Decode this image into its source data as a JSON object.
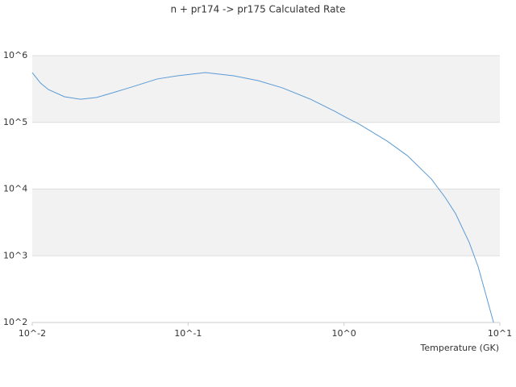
{
  "chart_data": {
    "type": "line",
    "title": "n + pr174 -> pr175 Calculated Rate",
    "x_label": "Temperature (GK)",
    "x": [
      0.01,
      0.0113,
      0.0127,
      0.0161,
      0.0204,
      0.0259,
      0.0329,
      0.0418,
      0.0634,
      0.0854,
      0.129,
      0.196,
      0.281,
      0.402,
      0.61,
      0.871,
      1.04,
      1.25,
      1.89,
      2.55,
      3.64,
      4.46,
      5.2,
      6.37,
      7.26,
      9.11
    ],
    "series": [
      {
        "color": "#5b9bd5",
        "values": [
          557000,
          388000,
          310000,
          242000,
          222000,
          236000,
          278000,
          329000,
          447000,
          499000,
          557000,
          499000,
          422000,
          329000,
          222000,
          147000,
          117000,
          94000,
          52400,
          31700,
          14100,
          7470,
          4280,
          1570,
          682,
          100
        ]
      }
    ],
    "xlim": [
      0.01,
      10
    ],
    "ylim": [
      100,
      1000000
    ],
    "xticks": [
      {
        "value": 0.01,
        "label": "10^-2"
      },
      {
        "value": 0.1,
        "label": "10^-1"
      },
      {
        "value": 1,
        "label": "10^0"
      },
      {
        "value": 10,
        "label": "10^1"
      }
    ],
    "yticks": [
      {
        "value": 100,
        "label": "10^2"
      },
      {
        "value": 1000,
        "label": "10^3"
      },
      {
        "value": 10000,
        "label": "10^4"
      },
      {
        "value": 100000,
        "label": "10^5"
      },
      {
        "value": 1000000,
        "label": "10^6"
      }
    ],
    "x_log": true,
    "y_log": true,
    "grid": true
  }
}
